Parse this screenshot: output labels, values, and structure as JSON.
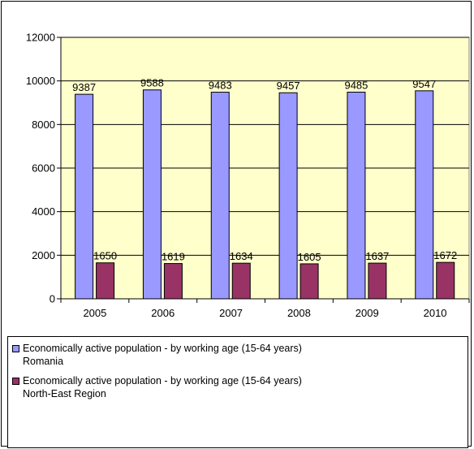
{
  "chart_data": {
    "type": "bar",
    "categories": [
      "2005",
      "2006",
      "2007",
      "2008",
      "2009",
      "2010"
    ],
    "series": [
      {
        "name_lines": [
          "Economically active population - by working age (15-64 years)",
          "Romania"
        ],
        "values": [
          9387,
          9588,
          9483,
          9457,
          9485,
          9547
        ],
        "color": "#9999ff"
      },
      {
        "name_lines": [
          "Economically active population - by working age (15-64 years)",
          "North-East Region"
        ],
        "values": [
          1650,
          1619,
          1634,
          1605,
          1637,
          1672
        ],
        "color": "#993366"
      }
    ],
    "ylim": [
      0,
      12000
    ],
    "yticks": [
      "0",
      "2000",
      "4000",
      "6000",
      "8000",
      "10000",
      "12000"
    ],
    "grid": true,
    "plot_background": "#ffffcc",
    "legend_position": "bottom"
  }
}
